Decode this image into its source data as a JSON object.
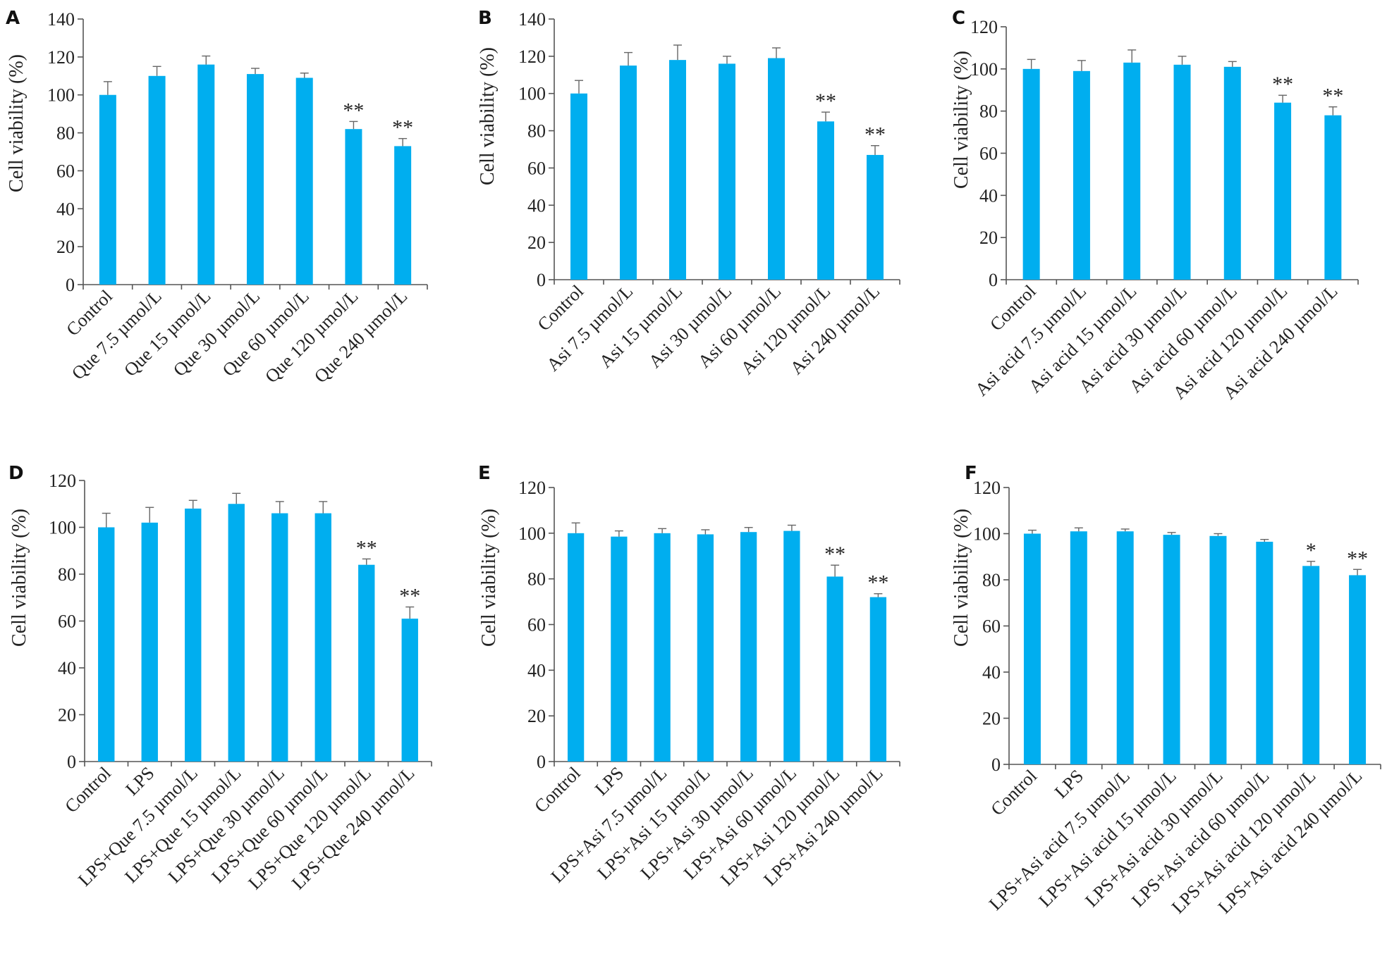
{
  "chart_data": [
    {
      "panel": "A",
      "type": "bar",
      "ylabel": "Cell viability (%)",
      "ylim": [
        0,
        140
      ],
      "yticks": [
        0,
        20,
        40,
        60,
        80,
        100,
        120,
        140
      ],
      "categories": [
        "Control",
        "Que 7.5 µmol/L",
        "Que 15 µmol/L",
        "Que 30 µmol/L",
        "Que 60 µmol/L",
        "Que 120 µmol/L",
        "Que 240 µmol/L"
      ],
      "values": [
        100,
        110,
        116,
        111,
        109,
        82,
        73
      ],
      "errors": [
        7,
        5,
        4.5,
        3,
        2.5,
        4,
        4
      ],
      "significance": [
        "",
        "",
        "",
        "",
        "",
        "**",
        "**"
      ]
    },
    {
      "panel": "B",
      "type": "bar",
      "ylabel": "Cell viability (%)",
      "ylim": [
        0,
        140
      ],
      "yticks": [
        0,
        20,
        40,
        60,
        80,
        100,
        120,
        140
      ],
      "categories": [
        "Control",
        "Asi 7.5 µmol/L",
        "Asi 15 µmol/L",
        "Asi 30 µmol/L",
        "Asi 60 µmol/L",
        "Asi 120 µmol/L",
        "Asi 240 µmol/L"
      ],
      "values": [
        100,
        115,
        118,
        116,
        119,
        85,
        67
      ],
      "errors": [
        7,
        7,
        8,
        4,
        5.5,
        5,
        5
      ],
      "significance": [
        "",
        "",
        "",
        "",
        "",
        "**",
        "**"
      ]
    },
    {
      "panel": "C",
      "type": "bar",
      "ylabel": "Cell viability (%)",
      "ylim": [
        0,
        120
      ],
      "yticks": [
        0,
        20,
        40,
        60,
        80,
        100,
        120
      ],
      "categories": [
        "Control",
        "Asi acid 7.5 µmol/L",
        "Asi acid 15 µmol/L",
        "Asi acid 30 µmol/L",
        "Asi acid 60 µmol/L",
        "Asi acid 120 µmol/L",
        "Asi acid 240 µmol/L"
      ],
      "values": [
        100,
        99,
        103,
        102,
        101,
        84,
        78
      ],
      "errors": [
        4.5,
        5,
        6,
        4,
        2.5,
        3.5,
        4
      ],
      "significance": [
        "",
        "",
        "",
        "",
        "",
        "**",
        "**"
      ]
    },
    {
      "panel": "D",
      "type": "bar",
      "ylabel": "Cell viability (%)",
      "ylim": [
        0,
        120
      ],
      "yticks": [
        0,
        20,
        40,
        60,
        80,
        100,
        120
      ],
      "categories": [
        "Control",
        "LPS",
        "LPS+Que 7.5 µmol/L",
        "LPS+Que 15 µmol/L",
        "LPS+Que 30 µmol/L",
        "LPS+Que 60 µmol/L",
        "LPS+Que 120 µmol/L",
        "LPS+Que 240 µmol/L"
      ],
      "values": [
        100,
        102,
        108,
        110,
        106,
        106,
        84,
        61
      ],
      "errors": [
        6,
        6.5,
        3.5,
        4.5,
        5,
        5,
        2.5,
        5
      ],
      "significance": [
        "",
        "",
        "",
        "",
        "",
        "",
        "**",
        "**"
      ]
    },
    {
      "panel": "E",
      "type": "bar",
      "ylabel": "Cell viability (%)",
      "ylim": [
        0,
        120
      ],
      "yticks": [
        0,
        20,
        40,
        60,
        80,
        100,
        120
      ],
      "categories": [
        "Control",
        "LPS",
        "LPS+Asi 7.5 µmol/L",
        "LPS+Asi 15 µmol/L",
        "LPS+Asi 30 µmol/L",
        "LPS+Asi 60 µmol/L",
        "LPS+Asi 120 µmol/L",
        "LPS+Asi 240 µmol/L"
      ],
      "values": [
        100,
        98.5,
        100,
        99.5,
        100.5,
        101,
        81,
        72
      ],
      "errors": [
        4.5,
        2.5,
        2,
        2,
        2,
        2.5,
        5,
        1.5
      ],
      "significance": [
        "",
        "",
        "",
        "",
        "",
        "",
        "**",
        "**"
      ]
    },
    {
      "panel": "F",
      "type": "bar",
      "ylabel": "Cell viability (%)",
      "ylim": [
        0,
        120
      ],
      "yticks": [
        0,
        20,
        40,
        60,
        80,
        100,
        120
      ],
      "categories": [
        "Control",
        "LPS",
        "LPS+Asi acid 7.5 µmol/L",
        "LPS+Asi acid 15 µmol/L",
        "LPS+Asi acid 30 µmol/L",
        "LPS+Asi acid 60 µmol/L",
        "LPS+Asi acid 120 µmol/L",
        "LPS+Asi acid 240 µmol/L"
      ],
      "values": [
        100,
        101,
        101,
        99.5,
        99,
        96.5,
        86,
        82
      ],
      "errors": [
        1.5,
        1.5,
        1,
        1,
        1,
        1,
        2,
        2.5
      ],
      "significance": [
        "",
        "",
        "",
        "",
        "",
        "",
        "*",
        "**"
      ]
    }
  ]
}
